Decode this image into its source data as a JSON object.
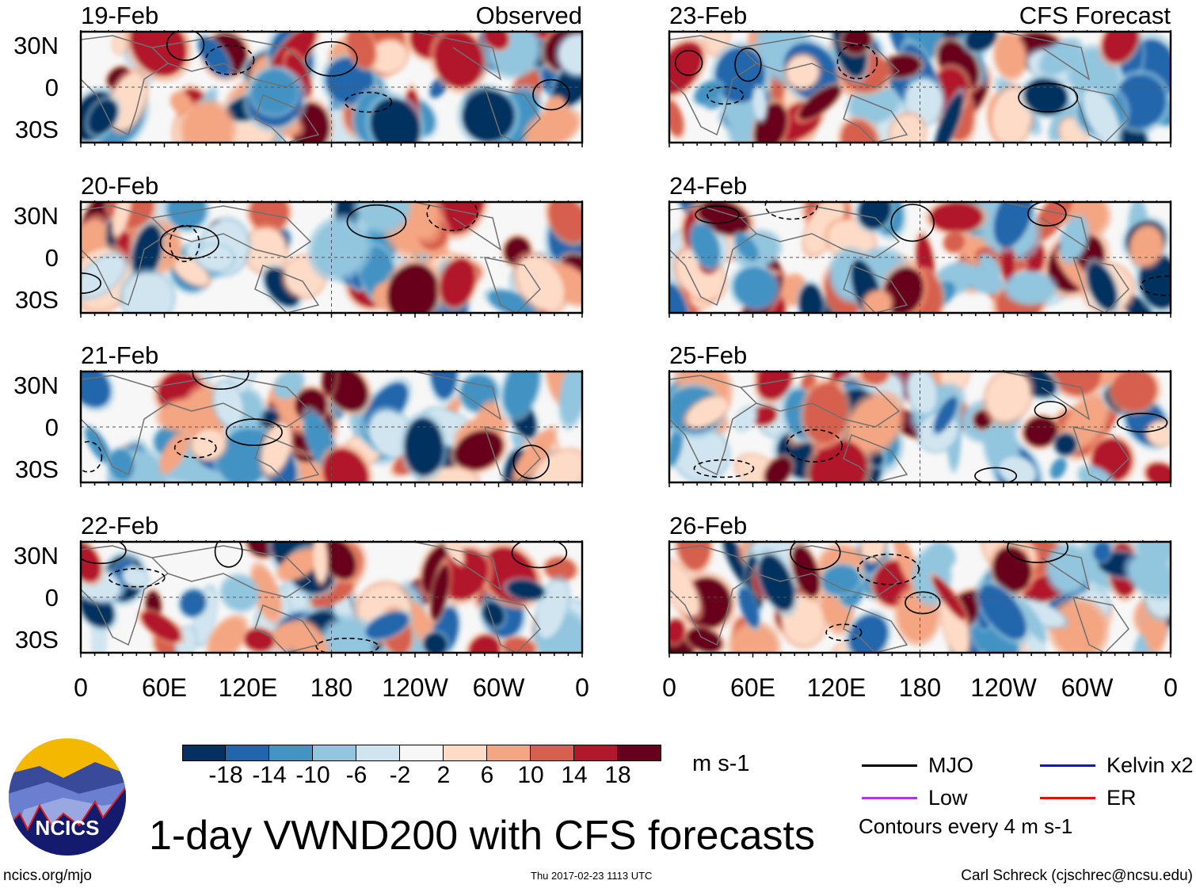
{
  "title": "1-day VWND200 with CFS forecasts",
  "columns": [
    {
      "label": "Observed",
      "panels": [
        "19-Feb",
        "20-Feb",
        "21-Feb",
        "22-Feb"
      ]
    },
    {
      "label": "CFS Forecast",
      "panels": [
        "23-Feb",
        "24-Feb",
        "25-Feb",
        "26-Feb"
      ]
    }
  ],
  "chart_data": {
    "type": "heatmap",
    "title": "1-day VWND200 with CFS forecasts",
    "x_ticks": [
      "0",
      "60E",
      "120E",
      "180",
      "120W",
      "60W",
      "0"
    ],
    "y_ticks": [
      "30N",
      "0",
      "30S"
    ],
    "colorbar": {
      "units": "m s-1",
      "tick_labels": [
        "-18",
        "-14",
        "-10",
        "-6",
        "-2",
        "2",
        "6",
        "10",
        "14",
        "18"
      ],
      "colors": [
        "#053061",
        "#2166ac",
        "#4393c3",
        "#92c5de",
        "#d1e5f0",
        "#f7f7f7",
        "#fddbc7",
        "#f4a582",
        "#d6604d",
        "#b2182b",
        "#67001f"
      ]
    },
    "legend": [
      {
        "label": "MJO",
        "color": "#000000"
      },
      {
        "label": "Kelvin x2",
        "color": "#1010e0"
      },
      {
        "label": "Low",
        "color": "#a040e0"
      },
      {
        "label": "ER",
        "color": "#e01010"
      }
    ],
    "contour_note": "Contours every 4 m s-1"
  },
  "footer": {
    "url": "ncics.org/mjo",
    "timestamp": "Thu 2017-02-23 1113 UTC",
    "author": "Carl Schreck (cjschrec@ncsu.edu)",
    "logo_text": "NCICS"
  }
}
